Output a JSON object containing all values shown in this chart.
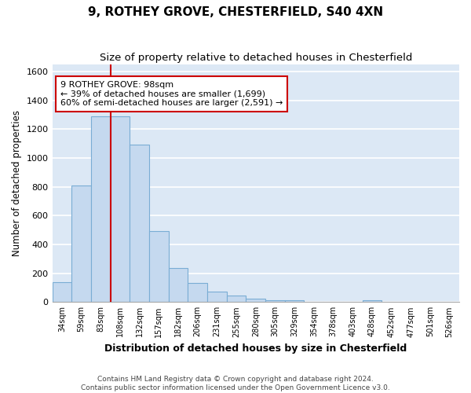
{
  "title1": "9, ROTHEY GROVE, CHESTERFIELD, S40 4XN",
  "title2": "Size of property relative to detached houses in Chesterfield",
  "xlabel": "Distribution of detached houses by size in Chesterfield",
  "ylabel": "Number of detached properties",
  "bins": [
    "34sqm",
    "59sqm",
    "83sqm",
    "108sqm",
    "132sqm",
    "157sqm",
    "182sqm",
    "206sqm",
    "231sqm",
    "255sqm",
    "280sqm",
    "305sqm",
    "329sqm",
    "354sqm",
    "378sqm",
    "403sqm",
    "428sqm",
    "452sqm",
    "477sqm",
    "501sqm",
    "526sqm"
  ],
  "values": [
    140,
    810,
    1290,
    1290,
    1090,
    490,
    235,
    135,
    75,
    45,
    25,
    15,
    10,
    0,
    0,
    0,
    15,
    0,
    0,
    0,
    0
  ],
  "bar_color": "#c5d9ef",
  "bar_edge_color": "#7aadd4",
  "bar_width": 1.0,
  "red_line_x": 2.5,
  "red_line_color": "#cc0000",
  "annotation_text": "9 ROTHEY GROVE: 98sqm\n← 39% of detached houses are smaller (1,699)\n60% of semi-detached houses are larger (2,591) →",
  "annotation_box_color": "#ffffff",
  "annotation_box_edge": "#cc0000",
  "footer_text": "Contains HM Land Registry data © Crown copyright and database right 2024.\nContains public sector information licensed under the Open Government Licence v3.0.",
  "ylim": [
    0,
    1650
  ],
  "background_color": "#dce8f5",
  "fig_background": "#ffffff",
  "grid_color": "#ffffff",
  "title1_fontsize": 11,
  "title2_fontsize": 9.5
}
